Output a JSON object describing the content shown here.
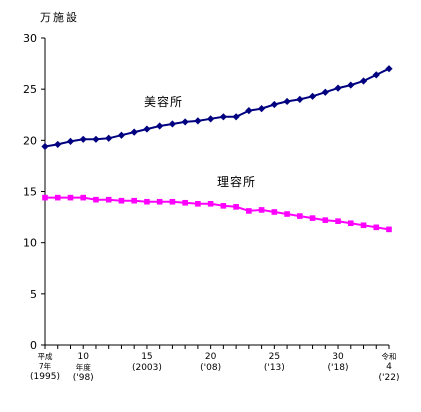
{
  "chart_data": {
    "type": "line",
    "unit_label": "万施設",
    "ylim": [
      0,
      30
    ],
    "yticks": [
      0,
      5,
      10,
      15,
      20,
      25,
      30
    ],
    "x_years": [
      1995,
      1996,
      1997,
      1998,
      1999,
      2000,
      2001,
      2002,
      2003,
      2004,
      2005,
      2006,
      2007,
      2008,
      2009,
      2010,
      2011,
      2012,
      2013,
      2014,
      2015,
      2016,
      2017,
      2018,
      2019,
      2020,
      2021,
      2022
    ],
    "xticks": [
      {
        "year": 1995,
        "lines": [
          "平成",
          "7年",
          "(1995)"
        ],
        "small": [
          true,
          true,
          false
        ]
      },
      {
        "year": 1998,
        "lines": [
          "10",
          "年度",
          "('98)"
        ],
        "small": [
          false,
          true,
          false
        ]
      },
      {
        "year": 2003,
        "lines": [
          "15",
          "(2003)"
        ],
        "small": [
          false,
          false
        ]
      },
      {
        "year": 2008,
        "lines": [
          "20",
          "('08)"
        ],
        "small": [
          false,
          false
        ]
      },
      {
        "year": 2013,
        "lines": [
          "25",
          "('13)"
        ],
        "small": [
          false,
          false
        ]
      },
      {
        "year": 2018,
        "lines": [
          "30",
          "('18)"
        ],
        "small": [
          false,
          false
        ]
      },
      {
        "year": 2022,
        "lines": [
          "令和",
          "4",
          "('22)"
        ],
        "small": [
          true,
          false,
          false
        ]
      }
    ],
    "grid": false,
    "series": [
      {
        "name": "美容所",
        "color": "#000080",
        "marker": "diamond",
        "values": [
          19.4,
          19.6,
          19.9,
          20.1,
          20.1,
          20.2,
          20.5,
          20.8,
          21.1,
          21.4,
          21.6,
          21.8,
          21.9,
          22.1,
          22.3,
          22.3,
          22.9,
          23.1,
          23.5,
          23.8,
          24.0,
          24.3,
          24.7,
          25.1,
          25.4,
          25.8,
          26.4,
          27.0
        ]
      },
      {
        "name": "理容所",
        "color": "#ff00ff",
        "marker": "square",
        "values": [
          14.4,
          14.4,
          14.4,
          14.4,
          14.2,
          14.2,
          14.1,
          14.1,
          14.0,
          14.0,
          14.0,
          13.9,
          13.8,
          13.8,
          13.6,
          13.5,
          13.1,
          13.2,
          13.0,
          12.8,
          12.6,
          12.4,
          12.2,
          12.1,
          11.9,
          11.7,
          11.5,
          11.3
        ]
      }
    ]
  }
}
